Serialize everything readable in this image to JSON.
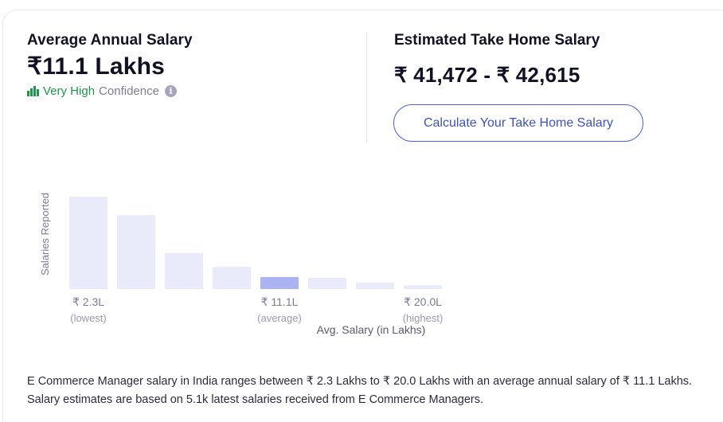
{
  "left_panel": {
    "title": "Average Annual Salary",
    "salary": "₹11.1 Lakhs",
    "confidence_level": "Very High",
    "confidence_word": "Confidence",
    "info_glyph": "i"
  },
  "right_panel": {
    "title": "Estimated Take Home Salary",
    "range": "₹ 41,472 - ₹ 42,615",
    "button_label": "Calculate Your Take Home Salary"
  },
  "colors": {
    "bar_default": "#e9ebfb",
    "bar_highlight": "#aab4f2",
    "confidence_green": "#1a9a4a",
    "accent_blue": "#4a5fd8"
  },
  "chart_data": {
    "type": "bar",
    "ylabel": "Salaries Reported",
    "xlabel": "Avg. Salary (in Lakhs)",
    "relative_values": [
      1.0,
      0.8,
      0.39,
      0.24,
      0.13,
      0.12,
      0.07,
      0.04
    ],
    "highlight_index": 4,
    "tick_labels": [
      {
        "index": 0,
        "value": "₹ 2.3L",
        "sub": "(lowest)"
      },
      {
        "index": 4,
        "value": "₹ 11.1L",
        "sub": "(average)"
      },
      {
        "index": 7,
        "value": "₹ 20.0L",
        "sub": "(highest)"
      }
    ]
  },
  "footer": {
    "line1": "E Commerce Manager salary in India ranges between ₹ 2.3 Lakhs to ₹ 20.0 Lakhs with an average annual salary of ₹ 11.1 Lakhs.",
    "line2": "Salary estimates are based on 5.1k latest salaries received from E Commerce Managers."
  }
}
